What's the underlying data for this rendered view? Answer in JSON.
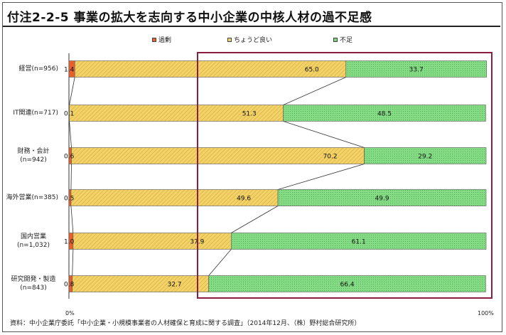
{
  "title": "付注2-2-5 事業の拡大を志向する中小企業の中核人材の過不足感",
  "source": "資料：中小企業庁委託「中小企業・小規模事業者の人材確保と育成に関する調査」（2014年12月、（株）野村総合研究所）",
  "colors": {
    "excess": "#e8602c",
    "adequate": "#f2d36b",
    "shortage": "#7fd67f",
    "highlight_box": "#8b1e3f"
  },
  "chart_data": {
    "type": "bar",
    "orientation": "horizontal",
    "stacked": "percent",
    "xlim": [
      0,
      100
    ],
    "axis_labels": {
      "start": "0%",
      "end": "100%"
    },
    "categories": [
      {
        "label_line1": "経営(n=956)",
        "label_line2": ""
      },
      {
        "label_line1": "IT関連(n=717)",
        "label_line2": ""
      },
      {
        "label_line1": "財務・会計",
        "label_line2": "(n=942)"
      },
      {
        "label_line1": "海外営業(n=385)",
        "label_line2": ""
      },
      {
        "label_line1": "国内営業",
        "label_line2": "(n=1,032)"
      },
      {
        "label_line1": "研究開発・製造",
        "label_line2": "(n=843)"
      }
    ],
    "series": [
      {
        "name": "過剰",
        "values": [
          1.4,
          0.1,
          0.6,
          0.5,
          1.0,
          0.8
        ],
        "labels": [
          "1.4",
          "0.1",
          "0.6",
          "0.5",
          "1.0",
          "0.8"
        ]
      },
      {
        "name": "ちょうど良い",
        "values": [
          65.0,
          51.3,
          70.2,
          49.6,
          37.9,
          32.7
        ],
        "labels": [
          "65.0",
          "51.3",
          "70.2",
          "49.6",
          "37.9",
          "32.7"
        ]
      },
      {
        "name": "不足",
        "values": [
          33.7,
          48.5,
          29.2,
          49.9,
          61.1,
          66.4
        ],
        "labels": [
          "33.7",
          "48.5",
          "29.2",
          "49.9",
          "61.1",
          "66.4"
        ]
      }
    ],
    "legend_position": "top",
    "connector_lines": true,
    "highlight_series": "不足"
  }
}
